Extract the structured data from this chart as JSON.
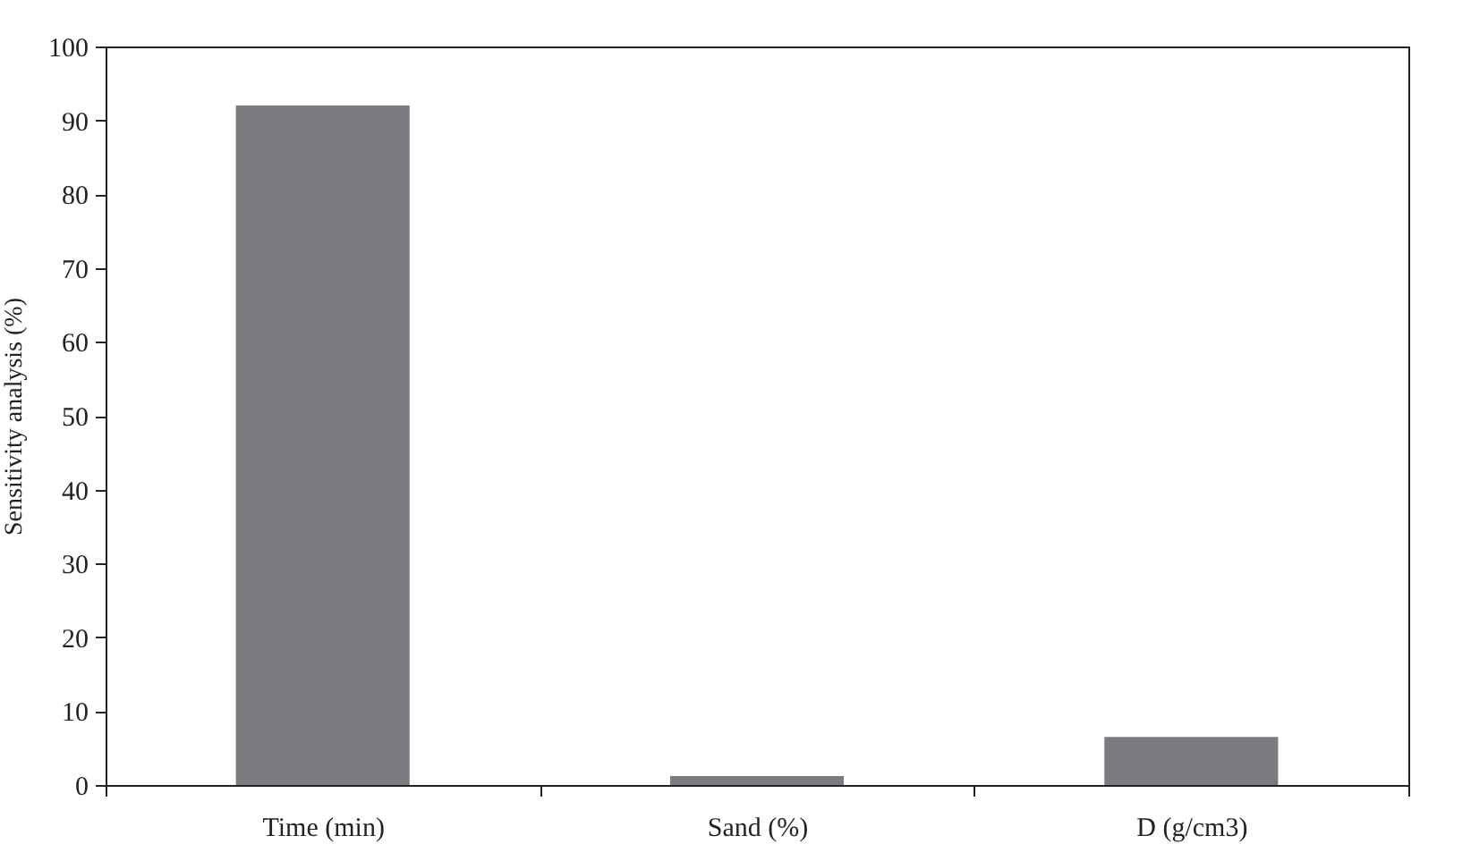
{
  "chart_data": {
    "type": "bar",
    "ylabel": "Sensitivity analysis (%)",
    "categories": [
      "Time (min)",
      "Sand (%)",
      "D (g/cm3)"
    ],
    "values": [
      92,
      1.2,
      6.5
    ],
    "color": "#7b7c80",
    "ylim": [
      0,
      100
    ],
    "yticks": [
      0,
      10,
      20,
      30,
      40,
      50,
      60,
      70,
      80,
      90,
      100
    ],
    "grid": false
  }
}
